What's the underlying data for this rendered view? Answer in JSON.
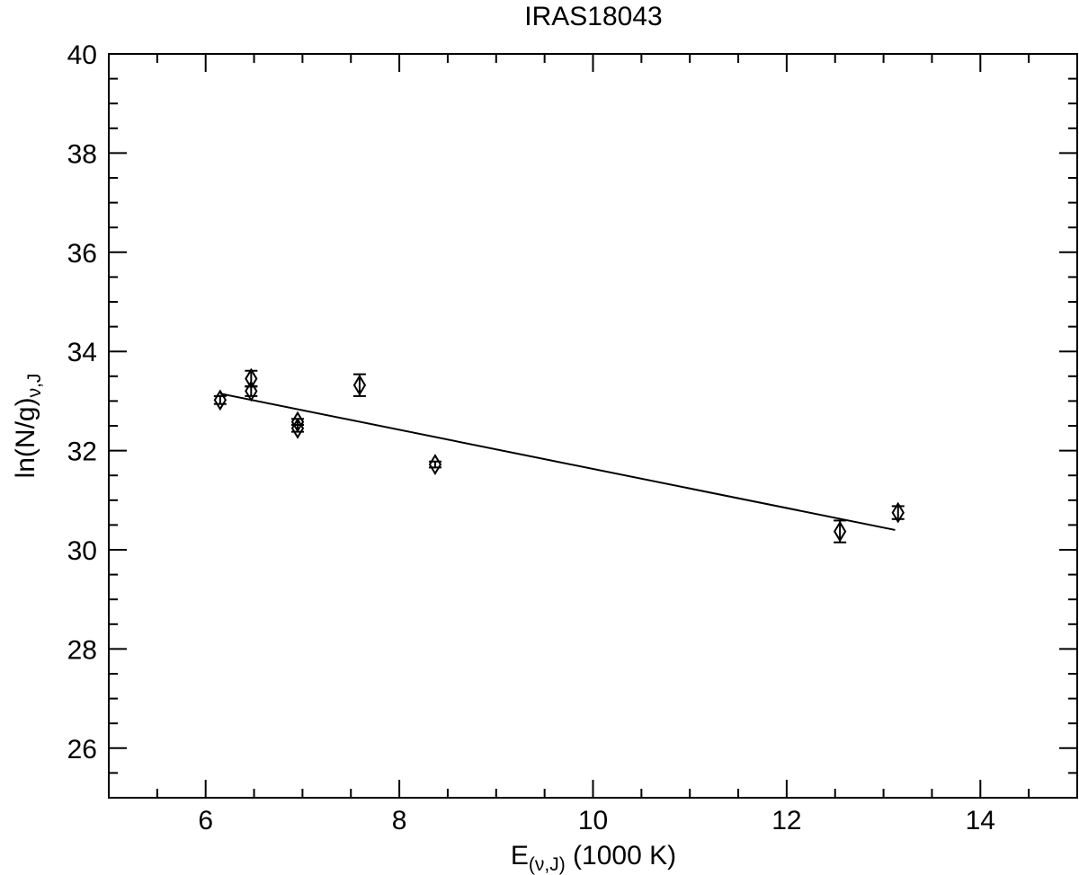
{
  "chart_data": {
    "type": "scatter",
    "title": "IRAS18043",
    "xlabel": {
      "main": "E",
      "subscript": "(ν,J)",
      "suffix": " (1000 K)"
    },
    "ylabel": {
      "main": "ln(N/g)",
      "subscript": "ν,J"
    },
    "xlim": [
      5,
      15
    ],
    "ylim": [
      25,
      40
    ],
    "x_ticks": [
      6,
      8,
      10,
      12,
      14
    ],
    "x_minor_step": 0.5,
    "y_ticks": [
      26,
      28,
      30,
      32,
      34,
      36,
      38,
      40
    ],
    "y_minor_step": 0.5,
    "grid": false,
    "legend": "none",
    "series": [
      {
        "marker": "diamond",
        "points": [
          {
            "x": 6.15,
            "y": 33.02,
            "err": 0.08
          },
          {
            "x": 6.47,
            "y": 33.45,
            "err": 0.16
          },
          {
            "x": 6.47,
            "y": 33.2,
            "err": 0.1
          },
          {
            "x": 6.95,
            "y": 32.58,
            "err": 0.06
          },
          {
            "x": 6.95,
            "y": 32.45,
            "err": 0.07
          },
          {
            "x": 7.59,
            "y": 33.32,
            "err": 0.22
          },
          {
            "x": 8.37,
            "y": 31.72,
            "err": 0.06
          },
          {
            "x": 12.55,
            "y": 30.37,
            "err": 0.22
          },
          {
            "x": 13.15,
            "y": 30.75,
            "err": 0.13
          }
        ]
      }
    ],
    "fit_line": {
      "x": [
        6.15,
        13.12
      ],
      "y": [
        33.15,
        30.4
      ]
    }
  }
}
